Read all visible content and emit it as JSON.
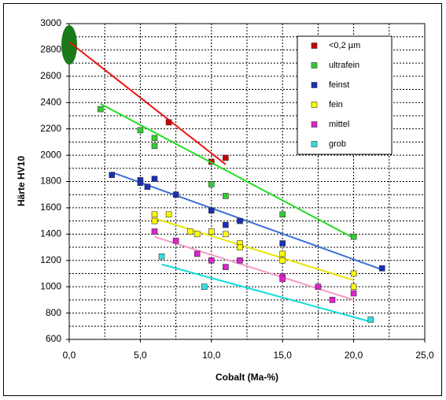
{
  "chart_data": {
    "type": "scatter",
    "xlabel": "Cobalt (Ma-%)",
    "ylabel": "Härte HV10",
    "xlim": [
      0,
      25
    ],
    "ylim": [
      600,
      3000
    ],
    "xticks": [
      {
        "value": 0,
        "label": "0,0"
      },
      {
        "value": 5,
        "label": "5,0"
      },
      {
        "value": 10,
        "label": "10,0"
      },
      {
        "value": 15,
        "label": "15,0"
      },
      {
        "value": 20,
        "label": "20,0"
      },
      {
        "value": 25,
        "label": "25,0"
      }
    ],
    "x_minor_grid": [
      2.5,
      7.5,
      12.5,
      17.5,
      22.5
    ],
    "yticks": [
      600,
      800,
      1000,
      1200,
      1400,
      1600,
      1800,
      2000,
      2200,
      2400,
      2600,
      2800,
      3000
    ],
    "y_minor_grid": [
      700,
      900,
      1100,
      1300,
      1500,
      1700,
      1900,
      2100,
      2300,
      2500,
      2700,
      2900
    ],
    "grid": true,
    "legend": "top-right",
    "series": [
      {
        "name": "<0,2 µm",
        "color": "#cc0000",
        "trend_color": "#ee1111",
        "x": [
          7,
          10,
          11
        ],
        "values": [
          2250,
          1950,
          1980
        ],
        "trend": {
          "x": [
            0,
            11
          ],
          "y": [
            2860,
            1930
          ]
        }
      },
      {
        "name": "ultrafein",
        "color": "#33cc33",
        "trend_color": "#22dd22",
        "x": [
          2.2,
          5,
          6,
          6,
          10,
          11,
          15,
          20
        ],
        "values": [
          2350,
          2190,
          2130,
          2070,
          1780,
          1690,
          1550,
          1380
        ],
        "trend": {
          "x": [
            2.2,
            20
          ],
          "y": [
            2390,
            1370
          ]
        }
      },
      {
        "name": "feinst",
        "color": "#1a2fb8",
        "trend_color": "#3a6fd8",
        "x": [
          3,
          5,
          5,
          5.5,
          6,
          7.5,
          10,
          11,
          12,
          15,
          22
        ],
        "values": [
          1850,
          1810,
          1790,
          1760,
          1820,
          1700,
          1580,
          1470,
          1500,
          1330,
          1140
        ],
        "trend": {
          "x": [
            3,
            22
          ],
          "y": [
            1870,
            1130
          ]
        }
      },
      {
        "name": "fein",
        "color": "#ffff00",
        "trend_color": "#e6e600",
        "x": [
          6,
          6,
          7,
          8.5,
          9,
          10,
          11,
          12,
          12,
          15,
          15,
          20,
          20
        ],
        "values": [
          1550,
          1500,
          1550,
          1420,
          1400,
          1420,
          1400,
          1330,
          1300,
          1250,
          1200,
          1100,
          1000
        ],
        "trend": {
          "x": [
            6,
            20
          ],
          "y": [
            1520,
            1050
          ]
        }
      },
      {
        "name": "mittel",
        "color": "#e020d0",
        "trend_color": "#f49ac8",
        "x": [
          6,
          7.5,
          9,
          10,
          11,
          12,
          15,
          15,
          17.5,
          18.5,
          20
        ],
        "values": [
          1420,
          1350,
          1250,
          1200,
          1150,
          1200,
          1080,
          1060,
          1000,
          900,
          950
        ],
        "trend": {
          "x": [
            6,
            20
          ],
          "y": [
            1380,
            900
          ]
        }
      },
      {
        "name": "grob",
        "color": "#33e0e0",
        "trend_color": "#11dddd",
        "x": [
          6.5,
          9.5,
          21.2
        ],
        "values": [
          1230,
          1000,
          750
        ],
        "trend": {
          "x": [
            6.5,
            21
          ],
          "y": [
            1170,
            740
          ]
        }
      }
    ]
  }
}
